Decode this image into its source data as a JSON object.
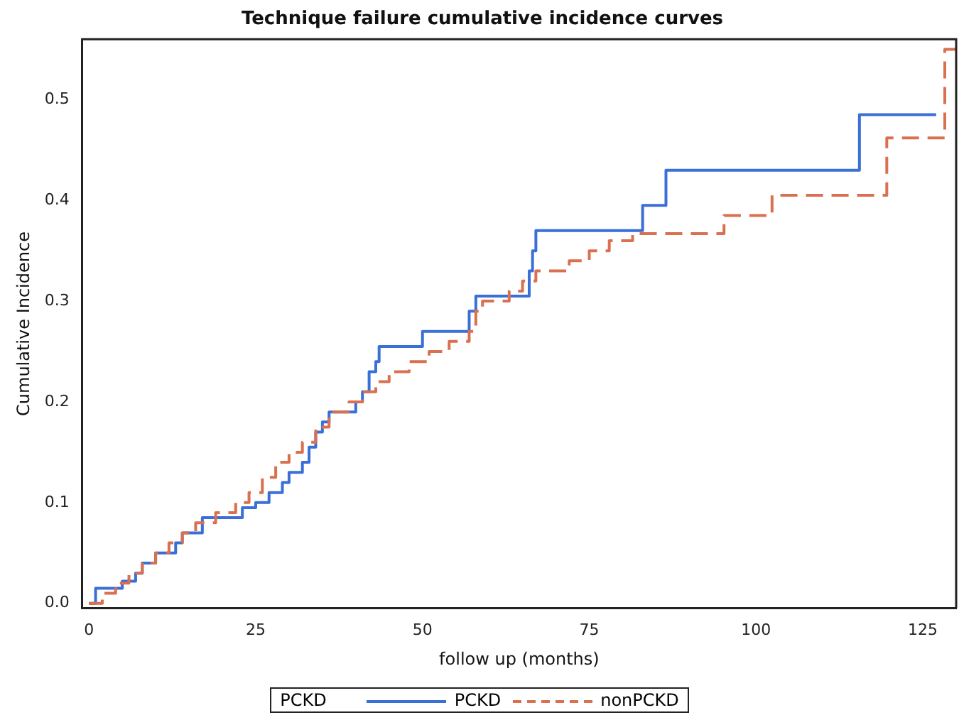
{
  "chart_data": {
    "type": "step",
    "title": "Technique failure cumulative incidence curves",
    "xlabel": "follow up (months)",
    "ylabel": "Cumulative Incidence",
    "legend_title": "PCKD",
    "legend": "bottom",
    "grid": false,
    "marker": "none",
    "xlim": [
      -1,
      130
    ],
    "xticks": [
      0,
      25,
      50,
      75,
      100,
      125
    ],
    "ylim": [
      -0.005,
      0.56
    ],
    "yticks": [
      {
        "value": 0,
        "label": "0.0"
      },
      {
        "value": 0.1,
        "label": "0.1"
      },
      {
        "value": 0.2,
        "label": "0.2"
      },
      {
        "value": 0.3,
        "label": "0.3"
      },
      {
        "value": 0.4,
        "label": "0.4"
      },
      {
        "value": 0.5,
        "label": "0.5"
      }
    ],
    "series": [
      {
        "name": "PCKD",
        "color": "#3a6fd8",
        "line_style": "solid",
        "x": [
          0,
          1,
          5,
          7,
          8,
          10,
          13,
          14,
          17,
          23,
          25,
          27,
          29,
          30,
          32,
          33,
          34,
          35,
          36,
          39,
          40,
          41,
          42,
          43,
          43.5,
          50,
          55,
          57,
          58,
          63,
          66,
          66.5,
          67,
          83,
          86.5,
          115.5,
          127
        ],
        "values": [
          0,
          0.015,
          0.022,
          0.03,
          0.04,
          0.05,
          0.06,
          0.07,
          0.085,
          0.095,
          0.1,
          0.11,
          0.12,
          0.13,
          0.14,
          0.155,
          0.17,
          0.18,
          0.19,
          0.19,
          0.2,
          0.21,
          0.23,
          0.24,
          0.255,
          0.27,
          0.27,
          0.29,
          0.305,
          0.305,
          0.33,
          0.35,
          0.37,
          0.395,
          0.43,
          0.485,
          0.485
        ]
      },
      {
        "name": "nonPCKD",
        "color": "#d9704f",
        "line_style": "dashed",
        "x": [
          0,
          2,
          4,
          6,
          8,
          10,
          12,
          14,
          16,
          19,
          22,
          24,
          26,
          28,
          30,
          32,
          34,
          36,
          39,
          41,
          43,
          45,
          48,
          51,
          54,
          57,
          58,
          59,
          63,
          65,
          67,
          72,
          75,
          78,
          81.5,
          95.2,
          102.4,
          119.6,
          128.3,
          130
        ],
        "values": [
          0,
          0.01,
          0.02,
          0.03,
          0.04,
          0.05,
          0.06,
          0.07,
          0.08,
          0.09,
          0.1,
          0.11,
          0.125,
          0.14,
          0.15,
          0.16,
          0.175,
          0.19,
          0.2,
          0.21,
          0.22,
          0.23,
          0.24,
          0.25,
          0.26,
          0.27,
          0.29,
          0.3,
          0.31,
          0.32,
          0.33,
          0.34,
          0.35,
          0.36,
          0.367,
          0.385,
          0.405,
          0.462,
          0.55,
          0.55
        ]
      }
    ]
  }
}
